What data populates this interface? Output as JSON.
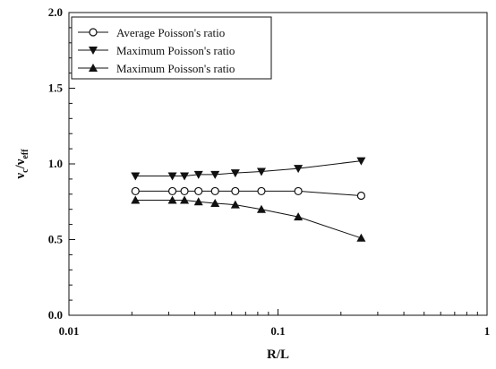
{
  "chart_data": {
    "type": "line",
    "x_scale": "log",
    "xlim": [
      0.01,
      1
    ],
    "ylim": [
      0.0,
      2.0
    ],
    "xlabel": "R/L",
    "ylabel": "ν_c/ν_eff",
    "ylabel_main": "ν",
    "ylabel_sub_c": "c",
    "ylabel_slash": "/",
    "ylabel_sub_eff": "eff",
    "x_ticks": [
      0.01,
      0.1,
      1
    ],
    "x_tick_labels": [
      "0.01",
      "0.1",
      "1"
    ],
    "y_ticks": [
      0.0,
      0.5,
      1.0,
      1.5,
      2.0
    ],
    "y_tick_labels": [
      "0.0",
      "0.5",
      "1.0",
      "1.5",
      "2.0"
    ],
    "grid": false,
    "legend_position": "top-left",
    "series": [
      {
        "name": "Average Poisson's ratio",
        "marker": "circle-open",
        "x": [
          0.0208,
          0.03125,
          0.0357,
          0.04167,
          0.05,
          0.0625,
          0.0833,
          0.125,
          0.25
        ],
        "y": [
          0.82,
          0.82,
          0.82,
          0.82,
          0.82,
          0.82,
          0.82,
          0.82,
          0.79
        ]
      },
      {
        "name": "Maximum Poisson's ratio",
        "marker": "triangle-down-filled",
        "x": [
          0.0208,
          0.03125,
          0.0357,
          0.04167,
          0.05,
          0.0625,
          0.0833,
          0.125,
          0.25
        ],
        "y": [
          0.92,
          0.92,
          0.92,
          0.93,
          0.93,
          0.94,
          0.95,
          0.97,
          1.02
        ]
      },
      {
        "name": "Maximum Poisson's ratio",
        "marker": "triangle-up-filled",
        "x": [
          0.0208,
          0.03125,
          0.0357,
          0.04167,
          0.05,
          0.0625,
          0.0833,
          0.125,
          0.25
        ],
        "y": [
          0.76,
          0.76,
          0.76,
          0.75,
          0.74,
          0.73,
          0.7,
          0.65,
          0.51
        ]
      }
    ]
  }
}
